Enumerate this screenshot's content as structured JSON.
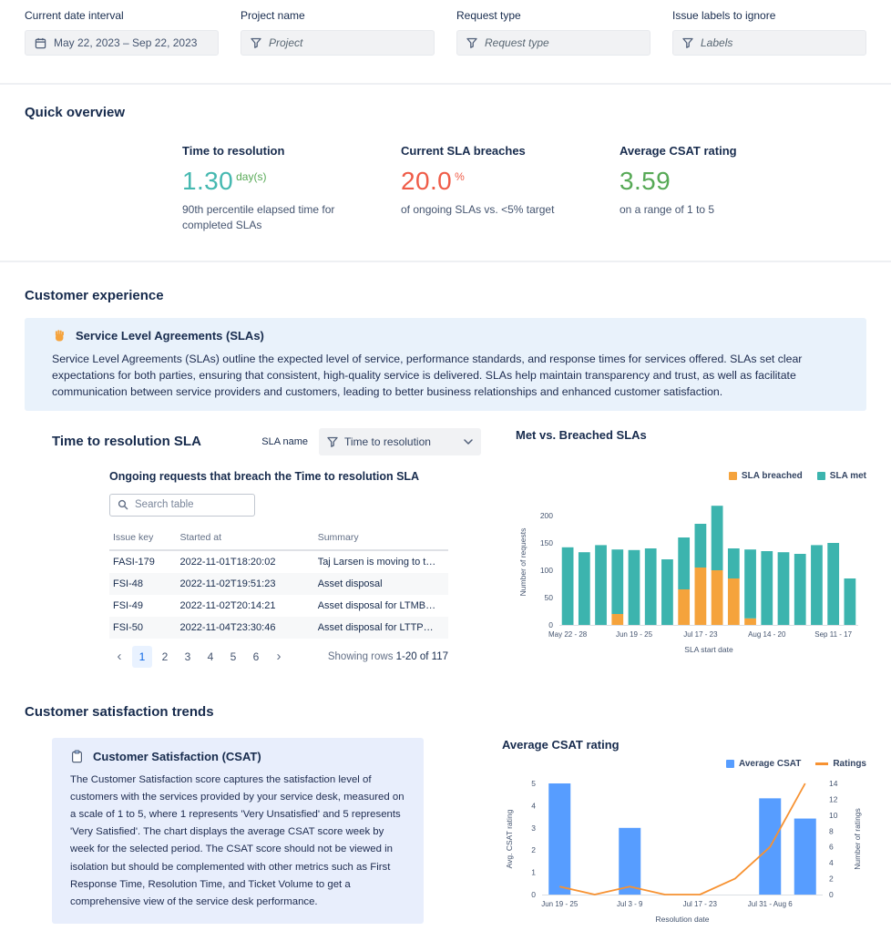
{
  "filters": {
    "date": {
      "label": "Current date interval",
      "value": "May 22, 2023 – Sep 22, 2023"
    },
    "project": {
      "label": "Project name",
      "placeholder": "Project"
    },
    "request_type": {
      "label": "Request type",
      "placeholder": "Request type"
    },
    "labels": {
      "label": "Issue labels to ignore",
      "placeholder": "Labels"
    }
  },
  "quick_overview": {
    "heading": "Quick overview",
    "kpis": [
      {
        "title": "Time to resolution",
        "value": "1.30",
        "unit": "day(s)",
        "subtitle": "90th percentile elapsed time for completed SLAs",
        "value_color": "#45b8b0",
        "unit_color": "#57a956"
      },
      {
        "title": "Current SLA breaches",
        "value": "20.0",
        "unit": "%",
        "subtitle": "of ongoing SLAs vs. <5% target",
        "value_color": "#ef5c48",
        "unit_color": "#ef5c48"
      },
      {
        "title": "Average CSAT rating",
        "value": "3.59",
        "unit": "",
        "subtitle": "on a range of 1 to 5",
        "value_color": "#57a956",
        "unit_color": "#57a956"
      }
    ]
  },
  "customer_experience": {
    "heading": "Customer experience",
    "info_panel": {
      "icon": "waving-hand-icon",
      "title": "Service Level Agreements (SLAs)",
      "body": "Service Level Agreements (SLAs) outline the expected level of service, performance standards, and response times for services offered. SLAs set clear expectations for both parties, ensuring that consistent, high-quality service is delivered. SLAs help maintain transparency and trust, as well as facilitate communication between service providers and customers, leading to better business relationships and enhanced customer satisfaction."
    },
    "sla_header": "Time to resolution SLA",
    "sla_name_label": "SLA name",
    "sla_select_value": "Time to resolution",
    "table_heading": "Ongoing requests that breach the Time to resolution SLA",
    "search_placeholder": "Search table",
    "table": {
      "columns": [
        "Issue key",
        "Started at",
        "Summary"
      ],
      "rows": [
        {
          "issue_key": "FASI-179",
          "started_at": "2022-11-01T18:20:02",
          "summary": "Taj Larsen is moving to t…"
        },
        {
          "issue_key": "FSI-48",
          "started_at": "2022-11-02T19:51:23",
          "summary": "Asset disposal"
        },
        {
          "issue_key": "FSI-49",
          "started_at": "2022-11-02T20:14:21",
          "summary": "Asset disposal for LTMB…"
        },
        {
          "issue_key": "FSI-50",
          "started_at": "2022-11-04T23:30:46",
          "summary": "Asset disposal for LTTP…"
        }
      ]
    },
    "pagination": {
      "prev": "‹",
      "next": "›",
      "pages": [
        "1",
        "2",
        "3",
        "4",
        "5",
        "6"
      ],
      "active": "1",
      "showing_prefix": "Showing rows",
      "showing_range": "1-20 of 117"
    }
  },
  "csat_section": {
    "heading": "Customer satisfaction trends",
    "info_panel": {
      "icon": "clipboard-icon",
      "title": "Customer Satisfaction (CSAT)",
      "body": "The Customer Satisfaction score captures the satisfaction level of customers with the services provided by your service desk, measured on a scale of 1 to 5, where 1 represents 'Very Unsatisfied' and 5 represents 'Very Satisfied'. The chart displays the average CSAT score week by week for the selected period. The CSAT score should not be viewed in isolation but should be complemented with other metrics such as First Response Time, Resolution Time, and Ticket Volume to get a comprehensive view of the service desk performance."
    }
  },
  "chart_data": [
    {
      "type": "bar",
      "stacked": true,
      "title": "Met vs. Breached SLAs",
      "xlabel": "SLA start date",
      "ylabel": "Number of requests",
      "ylim": [
        0,
        230
      ],
      "yticks": [
        0,
        50,
        100,
        150,
        200
      ],
      "legend_position": "top-right",
      "categories": [
        "May 22 - 28",
        "May 29 - Jun 4",
        "Jun 5 - 11",
        "Jun 12 - 18",
        "Jun 19 - 25",
        "Jun 26 - Jul 2",
        "Jul 3 - 9",
        "Jul 10 - 16",
        "Jul 17 - 23",
        "Jul 24 - 30",
        "Jul 31 - Aug 6",
        "Aug 7 - 13",
        "Aug 14 - 20",
        "Aug 21 - 27",
        "Aug 28 - Sep 3",
        "Sep 4 - 10",
        "Sep 11 - 17",
        "Sep 18 - 24"
      ],
      "xticks_shown": [
        "May 22 - 28",
        "Jun 19 - 25",
        "Jul 17 - 23",
        "Aug 14 - 20",
        "Sep 11 - 17"
      ],
      "series": [
        {
          "name": "SLA breached",
          "color": "#f5a33c",
          "values": [
            0,
            0,
            0,
            20,
            0,
            0,
            0,
            65,
            105,
            100,
            85,
            12,
            0,
            0,
            0,
            0,
            0,
            0
          ]
        },
        {
          "name": "SLA met",
          "color": "#3cb4ae",
          "values": [
            142,
            133,
            146,
            118,
            137,
            140,
            120,
            95,
            80,
            118,
            55,
            126,
            135,
            133,
            130,
            146,
            150,
            85
          ]
        }
      ]
    },
    {
      "type": "bar+line",
      "title": "Average CSAT rating",
      "xlabel": "Resolution date",
      "ylabel_left": "Avg. CSAT rating",
      "ylabel_right": "Number of ratings",
      "ylim_left": [
        0,
        5
      ],
      "yticks_left": [
        0,
        1,
        2,
        3,
        4,
        5
      ],
      "ylim_right": [
        0,
        14
      ],
      "yticks_right": [
        0,
        2,
        4,
        6,
        8,
        10,
        12,
        14
      ],
      "legend_position": "top-right",
      "categories": [
        "Jun 19 - 25",
        "Jun 26 - Jul 2",
        "Jul 3 - 9",
        "Jul 10 - 16",
        "Jul 17 - 23",
        "Jul 24 - 30",
        "Jul 31 - Aug 6",
        "Aug 7 - 13"
      ],
      "xticks_shown": [
        "Jun 19 - 25",
        "Jul 3 - 9",
        "Jul 17 - 23",
        "Jul 31 - Aug 6"
      ],
      "series": [
        {
          "name": "Average CSAT",
          "kind": "bar",
          "axis": "left",
          "color": "#579dff",
          "values": [
            5,
            null,
            3,
            null,
            null,
            null,
            4.33,
            3.42
          ]
        },
        {
          "name": "Ratings",
          "kind": "line",
          "axis": "right",
          "color": "#f79232",
          "values": [
            1,
            0,
            1,
            0,
            0,
            2,
            6,
            14
          ]
        }
      ]
    }
  ]
}
